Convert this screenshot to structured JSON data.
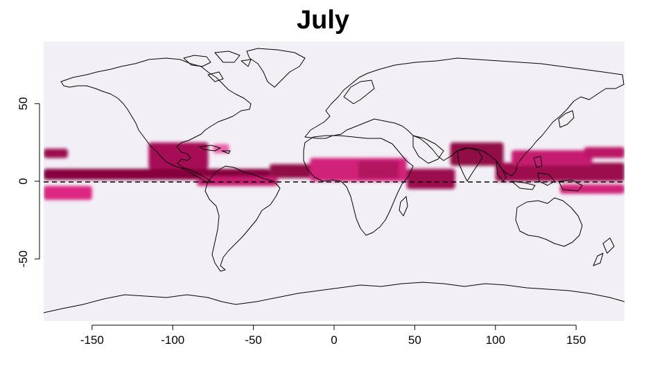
{
  "title": "July",
  "chart_data": {
    "type": "heatmap",
    "title": "July",
    "xlim": [
      -180,
      180
    ],
    "ylim": [
      -90,
      90
    ],
    "x_ticks": [
      -150,
      -100,
      -50,
      0,
      50,
      100,
      150
    ],
    "y_ticks": [
      -50,
      0,
      50
    ],
    "reference_line": {
      "y": 0,
      "style": "dashed"
    },
    "background_color": "#f3eff6",
    "colors": {
      "low": "#f3eff6",
      "mid": "#e7298a",
      "high": "#7a0034"
    },
    "intensity_regions": [
      {
        "lon": [
          -180,
          -40
        ],
        "lat": [
          1,
          8
        ],
        "level": 0.95
      },
      {
        "lon": [
          -40,
          20
        ],
        "lat": [
          2,
          11
        ],
        "level": 0.9
      },
      {
        "lon": [
          -85,
          -35
        ],
        "lat": [
          -3,
          3
        ],
        "level": 0.65
      },
      {
        "lon": [
          -115,
          -78
        ],
        "lat": [
          8,
          25
        ],
        "level": 0.8
      },
      {
        "lon": [
          -180,
          -165
        ],
        "lat": [
          15,
          21
        ],
        "level": 0.85
      },
      {
        "lon": [
          -180,
          -150
        ],
        "lat": [
          -12,
          -3
        ],
        "level": 0.55
      },
      {
        "lon": [
          -75,
          -65
        ],
        "lat": [
          18,
          24
        ],
        "level": 0.35
      },
      {
        "lon": [
          -15,
          45
        ],
        "lat": [
          0,
          15
        ],
        "level": 0.6
      },
      {
        "lon": [
          15,
          40
        ],
        "lat": [
          2,
          13
        ],
        "level": 0.75
      },
      {
        "lon": [
          45,
          75
        ],
        "lat": [
          -5,
          8
        ],
        "level": 0.85
      },
      {
        "lon": [
          72,
          105
        ],
        "lat": [
          10,
          25
        ],
        "level": 0.9
      },
      {
        "lon": [
          100,
          180
        ],
        "lat": [
          0,
          12
        ],
        "level": 0.85
      },
      {
        "lon": [
          110,
          160
        ],
        "lat": [
          10,
          20
        ],
        "level": 0.65
      },
      {
        "lon": [
          155,
          180
        ],
        "lat": [
          15,
          22
        ],
        "level": 0.7
      },
      {
        "lon": [
          140,
          180
        ],
        "lat": [
          -8,
          -2
        ],
        "level": 0.6
      }
    ]
  }
}
